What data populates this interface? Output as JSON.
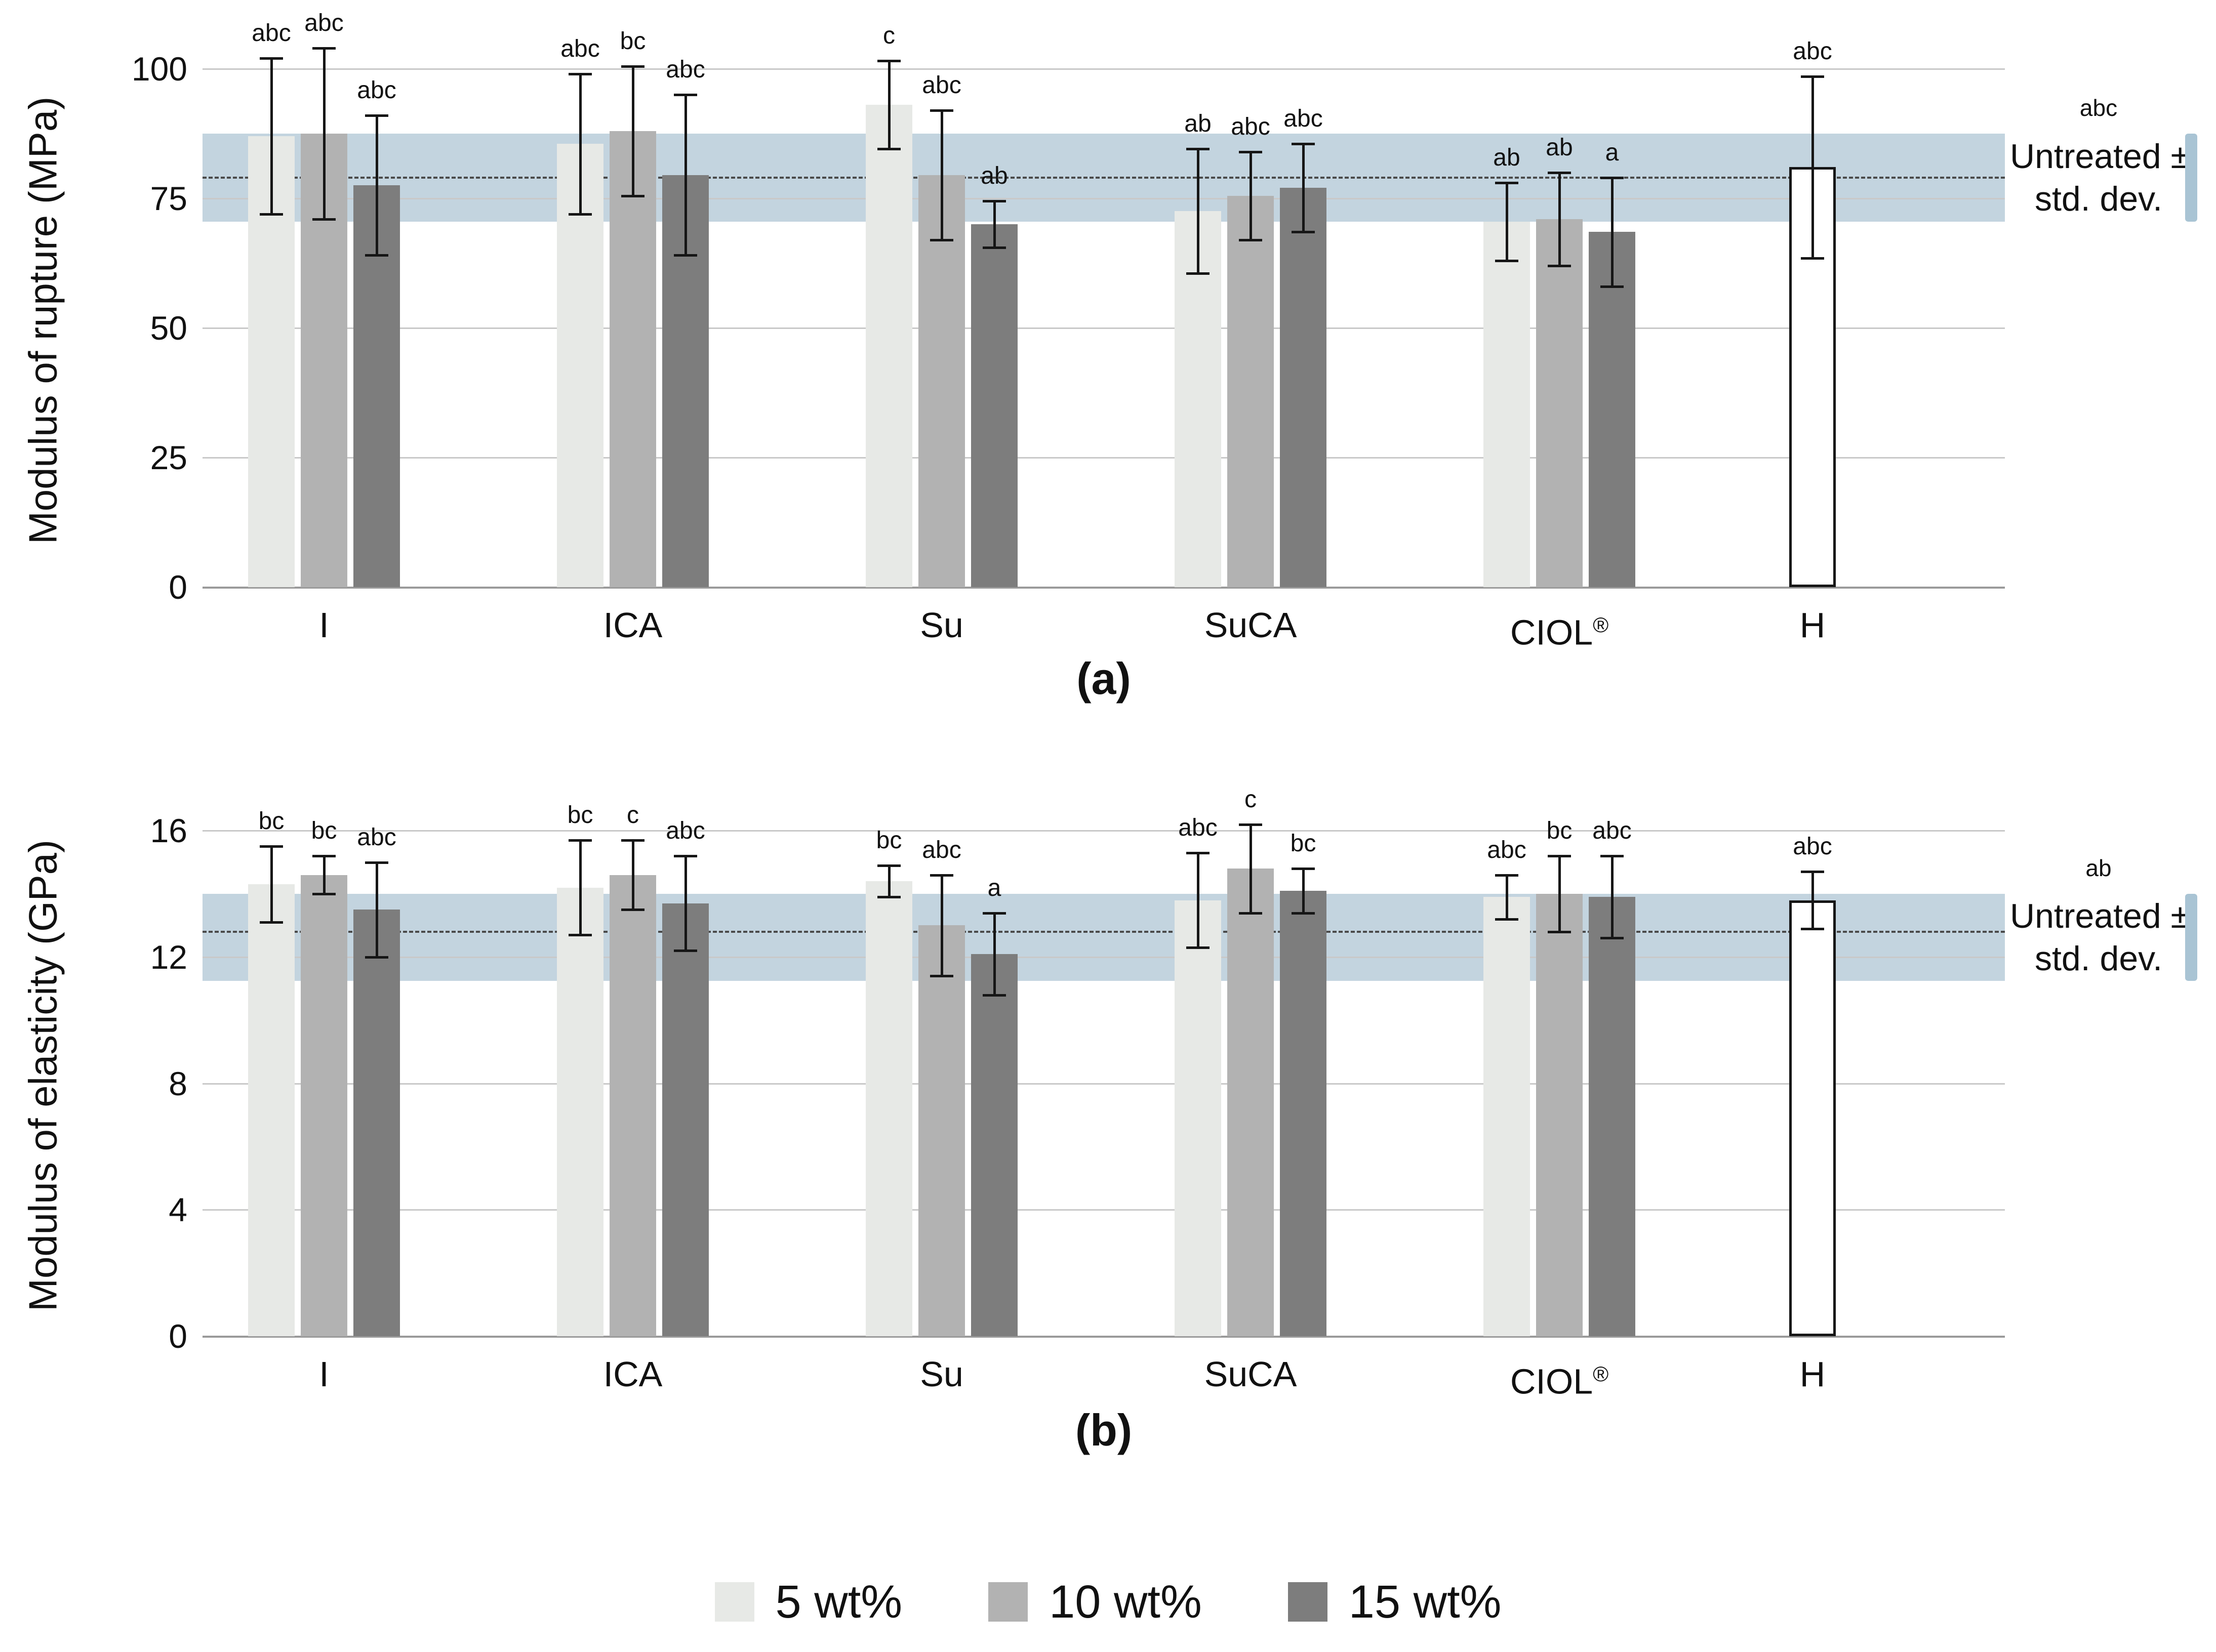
{
  "colors": {
    "series_5wt": "#e7e9e6",
    "series_10wt": "#b2b2b2",
    "series_15wt": "#7d7d7d",
    "untreated_band": "#b9cdd9",
    "h_bar_fill": "#ffffff",
    "gridline": "#c9c9c9",
    "error_bar": "#161616"
  },
  "legend": {
    "position": "bottom",
    "items": [
      {
        "label": "5 wt%",
        "color": "#e7e9e6"
      },
      {
        "label": "10 wt%",
        "color": "#b2b2b2"
      },
      {
        "label": "15 wt%",
        "color": "#7d7d7d"
      }
    ]
  },
  "chart_data": [
    {
      "type": "bar",
      "panel_label": "(a)",
      "ylabel": "Modulus of rupture (MPa)",
      "ylim": [
        0,
        100
      ],
      "yticks": [
        0,
        25,
        50,
        75,
        100
      ],
      "grid": true,
      "categories": [
        "I",
        "ICA",
        "Su",
        "SuCA",
        "CIOL®"
      ],
      "series": [
        {
          "name": "5 wt%",
          "color": "#e7e9e6",
          "values": [
            87,
            85.5,
            93,
            72.5,
            70.5
          ],
          "errors": [
            15,
            13.5,
            8.5,
            12,
            7.5
          ],
          "letters": [
            "abc",
            "abc",
            "c",
            "ab",
            "ab"
          ]
        },
        {
          "name": "10 wt%",
          "color": "#b2b2b2",
          "values": [
            87.5,
            88,
            79.5,
            75.5,
            71
          ],
          "errors": [
            16.5,
            12.5,
            12.5,
            8.5,
            9
          ],
          "letters": [
            "abc",
            "bc",
            "abc",
            "abc",
            "ab"
          ]
        },
        {
          "name": "15 wt%",
          "color": "#7d7d7d",
          "values": [
            77.5,
            79.5,
            70,
            77,
            68.5
          ],
          "errors": [
            13.5,
            15.5,
            4.5,
            8.5,
            10.5
          ],
          "letters": [
            "abc",
            "abc",
            "ab",
            "abc",
            "a"
          ]
        }
      ],
      "untreated_sample": {
        "category": "H",
        "value": 81,
        "error": 17.5,
        "letter": "abc"
      },
      "untreated_band": {
        "mean": 79,
        "low": 70.5,
        "high": 87.5,
        "side_letter": "abc",
        "label_lines": [
          "Untreated ±",
          "std. dev."
        ]
      }
    },
    {
      "type": "bar",
      "panel_label": "(b)",
      "ylabel": "Modulus of elasticity (GPa)",
      "ylim": [
        0,
        16
      ],
      "yticks": [
        0,
        4,
        8,
        12,
        16
      ],
      "grid": true,
      "categories": [
        "I",
        "ICA",
        "Su",
        "SuCA",
        "CIOL®"
      ],
      "series": [
        {
          "name": "5 wt%",
          "color": "#e7e9e6",
          "values": [
            14.3,
            14.2,
            14.4,
            13.8,
            13.9
          ],
          "errors": [
            1.2,
            1.5,
            0.5,
            1.5,
            0.7
          ],
          "letters": [
            "bc",
            "bc",
            "bc",
            "abc",
            "abc"
          ]
        },
        {
          "name": "10 wt%",
          "color": "#b2b2b2",
          "values": [
            14.6,
            14.6,
            13.0,
            14.8,
            14.0
          ],
          "errors": [
            0.6,
            1.1,
            1.6,
            1.4,
            1.2
          ],
          "letters": [
            "bc",
            "c",
            "abc",
            "c",
            "bc"
          ]
        },
        {
          "name": "15 wt%",
          "color": "#7d7d7d",
          "values": [
            13.5,
            13.7,
            12.1,
            14.1,
            13.9
          ],
          "errors": [
            1.5,
            1.5,
            1.3,
            0.7,
            1.3
          ],
          "letters": [
            "abc",
            "abc",
            "a",
            "bc",
            "abc"
          ]
        }
      ],
      "untreated_sample": {
        "category": "H",
        "value": 13.8,
        "error": 0.9,
        "letter": "abc"
      },
      "untreated_band": {
        "mean": 12.8,
        "low": 11.25,
        "high": 14.0,
        "side_letter": "ab",
        "label_lines": [
          "Untreated ±",
          "std. dev."
        ]
      }
    }
  ]
}
